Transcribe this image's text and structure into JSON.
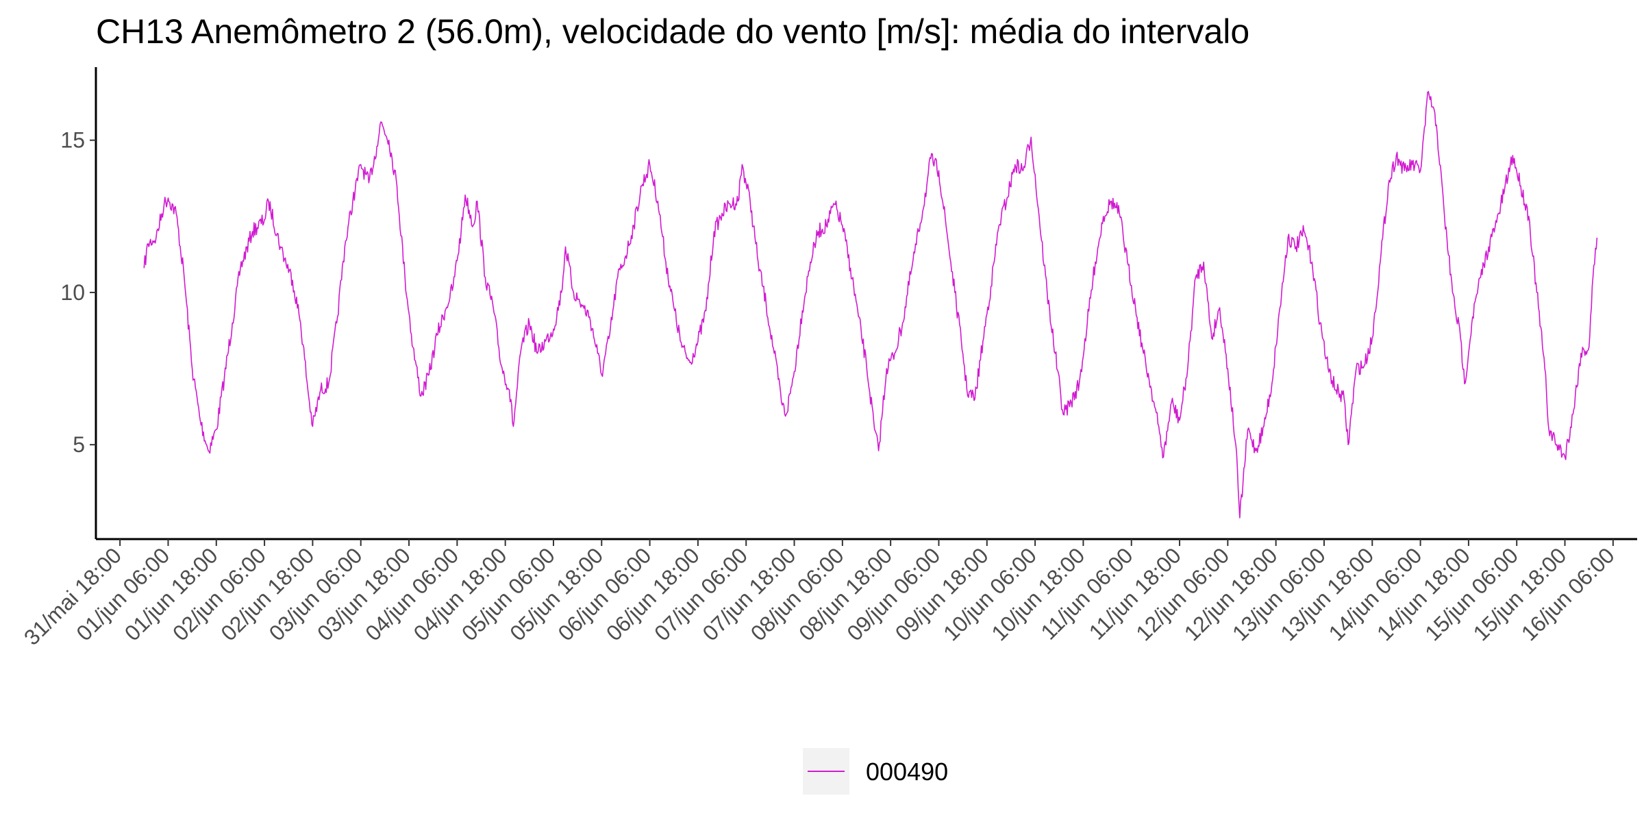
{
  "title": "CH13 Anemômetro 2 (56.0m), velocidade do vento [m/s]: média do intervalo",
  "colors": {
    "series": "#d11ad1",
    "axis": "#000000",
    "tick_text": "#4d4d4d",
    "legend_key_bg": "#f2f2f2"
  },
  "chart_data": {
    "type": "line",
    "title": "CH13 Anemômetro 2 (56.0m), velocidade do vento [m/s]: média do intervalo",
    "xlabel": "",
    "ylabel": "",
    "grid": false,
    "legend_position": "bottom",
    "x_unit": "datetime",
    "xlim": [
      "2024-05-31T12:00",
      "2024-06-16T12:00"
    ],
    "ylim": [
      1.9,
      17.4
    ],
    "yticks": [
      5,
      10,
      15
    ],
    "xtick_labels": [
      "31/mai 18:00",
      "01/jun 06:00",
      "01/jun 18:00",
      "02/jun 06:00",
      "02/jun 18:00",
      "03/jun 06:00",
      "03/jun 18:00",
      "04/jun 06:00",
      "04/jun 18:00",
      "05/jun 06:00",
      "05/jun 18:00",
      "06/jun 06:00",
      "06/jun 18:00",
      "07/jun 06:00",
      "07/jun 18:00",
      "08/jun 06:00",
      "08/jun 18:00",
      "09/jun 06:00",
      "09/jun 18:00",
      "10/jun 06:00",
      "10/jun 18:00",
      "11/jun 06:00",
      "11/jun 18:00",
      "12/jun 06:00",
      "12/jun 18:00",
      "13/jun 06:00",
      "13/jun 18:00",
      "14/jun 06:00",
      "14/jun 18:00",
      "15/jun 06:00",
      "15/jun 18:00",
      "16/jun 06:00"
    ],
    "xticks": [
      "2024-05-31T18:00",
      "2024-06-01T06:00",
      "2024-06-01T18:00",
      "2024-06-02T06:00",
      "2024-06-02T18:00",
      "2024-06-03T06:00",
      "2024-06-03T18:00",
      "2024-06-04T06:00",
      "2024-06-04T18:00",
      "2024-06-05T06:00",
      "2024-06-05T18:00",
      "2024-06-06T06:00",
      "2024-06-06T18:00",
      "2024-06-07T06:00",
      "2024-06-07T18:00",
      "2024-06-08T06:00",
      "2024-06-08T18:00",
      "2024-06-09T06:00",
      "2024-06-09T18:00",
      "2024-06-10T06:00",
      "2024-06-10T18:00",
      "2024-06-11T06:00",
      "2024-06-11T18:00",
      "2024-06-12T06:00",
      "2024-06-12T18:00",
      "2024-06-13T06:00",
      "2024-06-13T18:00",
      "2024-06-14T06:00",
      "2024-06-14T18:00",
      "2024-06-15T06:00",
      "2024-06-15T18:00",
      "2024-06-16T06:00"
    ],
    "series": [
      {
        "name": "000490",
        "color": "#d11ad1",
        "points": [
          [
            "2024-06-01T00:00",
            10.8
          ],
          [
            "2024-06-01T01:00",
            11.6
          ],
          [
            "2024-06-01T03:00",
            11.8
          ],
          [
            "2024-06-01T05:00",
            12.9
          ],
          [
            "2024-06-01T06:00",
            13.1
          ],
          [
            "2024-06-01T08:00",
            12.6
          ],
          [
            "2024-06-01T10:00",
            10.5
          ],
          [
            "2024-06-01T12:00",
            7.5
          ],
          [
            "2024-06-01T14:00",
            5.8
          ],
          [
            "2024-06-01T16:00",
            4.8
          ],
          [
            "2024-06-01T18:00",
            5.5
          ],
          [
            "2024-06-01T20:00",
            7.2
          ],
          [
            "2024-06-01T22:00",
            9.0
          ],
          [
            "2024-06-02T00:00",
            10.8
          ],
          [
            "2024-06-02T03:00",
            12.0
          ],
          [
            "2024-06-02T06:00",
            12.4
          ],
          [
            "2024-06-02T07:00",
            13.0
          ],
          [
            "2024-06-02T10:00",
            11.5
          ],
          [
            "2024-06-02T13:00",
            10.4
          ],
          [
            "2024-06-02T15:00",
            9.0
          ],
          [
            "2024-06-02T17:00",
            6.6
          ],
          [
            "2024-06-02T18:00",
            5.6
          ],
          [
            "2024-06-02T20:00",
            6.8
          ],
          [
            "2024-06-02T22:00",
            7.0
          ],
          [
            "2024-06-03T00:00",
            9.0
          ],
          [
            "2024-06-03T02:00",
            11.5
          ],
          [
            "2024-06-03T04:00",
            13.0
          ],
          [
            "2024-06-03T06:00",
            14.2
          ],
          [
            "2024-06-03T08:00",
            13.6
          ],
          [
            "2024-06-03T10:00",
            14.8
          ],
          [
            "2024-06-03T11:00",
            15.6
          ],
          [
            "2024-06-03T13:00",
            15.0
          ],
          [
            "2024-06-03T15:00",
            13.5
          ],
          [
            "2024-06-03T17:00",
            10.5
          ],
          [
            "2024-06-03T19:00",
            8.2
          ],
          [
            "2024-06-03T21:00",
            6.6
          ],
          [
            "2024-06-03T23:00",
            7.3
          ],
          [
            "2024-06-04T01:00",
            8.6
          ],
          [
            "2024-06-04T03:00",
            9.4
          ],
          [
            "2024-06-04T05:00",
            10.2
          ],
          [
            "2024-06-04T07:00",
            12.0
          ],
          [
            "2024-06-04T08:00",
            13.2
          ],
          [
            "2024-06-04T10:00",
            12.2
          ],
          [
            "2024-06-04T11:00",
            13.0
          ],
          [
            "2024-06-04T13:00",
            10.5
          ],
          [
            "2024-06-04T15:00",
            9.5
          ],
          [
            "2024-06-04T17:00",
            7.6
          ],
          [
            "2024-06-04T19:00",
            6.8
          ],
          [
            "2024-06-04T20:00",
            5.6
          ],
          [
            "2024-06-04T22:00",
            8.2
          ],
          [
            "2024-06-05T00:00",
            9.0
          ],
          [
            "2024-06-05T02:00",
            8.0
          ],
          [
            "2024-06-05T04:00",
            8.4
          ],
          [
            "2024-06-05T06:00",
            8.8
          ],
          [
            "2024-06-05T08:00",
            10.0
          ],
          [
            "2024-06-05T09:00",
            11.5
          ],
          [
            "2024-06-05T11:00",
            10.0
          ],
          [
            "2024-06-05T13:00",
            9.6
          ],
          [
            "2024-06-05T15:00",
            9.2
          ],
          [
            "2024-06-05T17:00",
            8.0
          ],
          [
            "2024-06-05T18:00",
            7.3
          ],
          [
            "2024-06-05T20:00",
            8.6
          ],
          [
            "2024-06-05T22:00",
            10.5
          ],
          [
            "2024-06-06T00:00",
            11.2
          ],
          [
            "2024-06-06T02:00",
            12.2
          ],
          [
            "2024-06-06T04:00",
            13.5
          ],
          [
            "2024-06-06T06:00",
            14.2
          ],
          [
            "2024-06-06T08:00",
            13.0
          ],
          [
            "2024-06-06T10:00",
            11.0
          ],
          [
            "2024-06-06T12:00",
            9.5
          ],
          [
            "2024-06-06T14:00",
            8.2
          ],
          [
            "2024-06-06T16:00",
            7.7
          ],
          [
            "2024-06-06T18:00",
            8.4
          ],
          [
            "2024-06-06T20:00",
            9.4
          ],
          [
            "2024-06-06T22:00",
            12.0
          ],
          [
            "2024-06-07T00:00",
            12.6
          ],
          [
            "2024-06-07T02:00",
            12.9
          ],
          [
            "2024-06-07T04:00",
            13.0
          ],
          [
            "2024-06-07T05:00",
            14.2
          ],
          [
            "2024-06-07T07:00",
            13.0
          ],
          [
            "2024-06-07T09:00",
            11.0
          ],
          [
            "2024-06-07T11:00",
            9.6
          ],
          [
            "2024-06-07T13:00",
            8.0
          ],
          [
            "2024-06-07T15:00",
            6.3
          ],
          [
            "2024-06-07T16:00",
            6.0
          ],
          [
            "2024-06-07T18:00",
            7.4
          ],
          [
            "2024-06-07T20:00",
            9.4
          ],
          [
            "2024-06-07T22:00",
            11.0
          ],
          [
            "2024-06-08T00:00",
            12.0
          ],
          [
            "2024-06-08T02:00",
            12.2
          ],
          [
            "2024-06-08T04:00",
            12.9
          ],
          [
            "2024-06-08T06:00",
            12.2
          ],
          [
            "2024-06-08T08:00",
            10.8
          ],
          [
            "2024-06-08T10:00",
            9.2
          ],
          [
            "2024-06-08T12:00",
            7.6
          ],
          [
            "2024-06-08T14:00",
            5.5
          ],
          [
            "2024-06-08T15:00",
            4.8
          ],
          [
            "2024-06-08T17:00",
            7.5
          ],
          [
            "2024-06-08T19:00",
            8.0
          ],
          [
            "2024-06-08T21:00",
            9.0
          ],
          [
            "2024-06-08T23:00",
            10.6
          ],
          [
            "2024-06-09T01:00",
            12.0
          ],
          [
            "2024-06-09T03:00",
            13.5
          ],
          [
            "2024-06-09T04:00",
            14.4
          ],
          [
            "2024-06-09T06:00",
            14.0
          ],
          [
            "2024-06-09T08:00",
            12.0
          ],
          [
            "2024-06-09T10:00",
            10.0
          ],
          [
            "2024-06-09T12:00",
            8.0
          ],
          [
            "2024-06-09T13:00",
            6.8
          ],
          [
            "2024-06-09T15:00",
            6.5
          ],
          [
            "2024-06-09T17:00",
            8.4
          ],
          [
            "2024-06-09T19:00",
            10.2
          ],
          [
            "2024-06-09T21:00",
            12.2
          ],
          [
            "2024-06-09T23:00",
            13.1
          ],
          [
            "2024-06-10T01:00",
            14.2
          ],
          [
            "2024-06-10T03:00",
            14.0
          ],
          [
            "2024-06-10T05:00",
            15.1
          ],
          [
            "2024-06-10T07:00",
            12.5
          ],
          [
            "2024-06-10T09:00",
            10.0
          ],
          [
            "2024-06-10T11:00",
            8.0
          ],
          [
            "2024-06-10T13:00",
            6.0
          ],
          [
            "2024-06-10T15:00",
            6.4
          ],
          [
            "2024-06-10T17:00",
            7.0
          ],
          [
            "2024-06-10T19:00",
            9.0
          ],
          [
            "2024-06-10T21:00",
            11.0
          ],
          [
            "2024-06-10T23:00",
            12.5
          ],
          [
            "2024-06-11T01:00",
            13.0
          ],
          [
            "2024-06-11T03:00",
            12.6
          ],
          [
            "2024-06-11T05:00",
            11.0
          ],
          [
            "2024-06-11T07:00",
            9.5
          ],
          [
            "2024-06-11T09:00",
            8.0
          ],
          [
            "2024-06-11T11:00",
            6.8
          ],
          [
            "2024-06-11T13:00",
            5.4
          ],
          [
            "2024-06-11T14:00",
            4.6
          ],
          [
            "2024-06-11T16:00",
            6.4
          ],
          [
            "2024-06-11T18:00",
            5.8
          ],
          [
            "2024-06-11T20:00",
            7.5
          ],
          [
            "2024-06-11T22:00",
            10.5
          ],
          [
            "2024-06-12T00:00",
            11.0
          ],
          [
            "2024-06-12T02:00",
            8.5
          ],
          [
            "2024-06-12T04:00",
            9.5
          ],
          [
            "2024-06-12T06:00",
            7.5
          ],
          [
            "2024-06-12T08:00",
            5.0
          ],
          [
            "2024-06-12T09:00",
            2.6
          ],
          [
            "2024-06-12T11:00",
            5.5
          ],
          [
            "2024-06-12T13:00",
            4.8
          ],
          [
            "2024-06-12T15:00",
            5.6
          ],
          [
            "2024-06-12T17:00",
            7.0
          ],
          [
            "2024-06-12T19:00",
            9.5
          ],
          [
            "2024-06-12T21:00",
            11.8
          ],
          [
            "2024-06-12T23:00",
            11.5
          ],
          [
            "2024-06-13T01:00",
            12.0
          ],
          [
            "2024-06-13T03:00",
            11.0
          ],
          [
            "2024-06-13T05:00",
            9.0
          ],
          [
            "2024-06-13T07:00",
            7.5
          ],
          [
            "2024-06-13T09:00",
            6.8
          ],
          [
            "2024-06-13T11:00",
            6.5
          ],
          [
            "2024-06-13T12:00",
            5.0
          ],
          [
            "2024-06-13T14:00",
            7.5
          ],
          [
            "2024-06-13T16:00",
            7.6
          ],
          [
            "2024-06-13T18:00",
            8.5
          ],
          [
            "2024-06-13T20:00",
            11.0
          ],
          [
            "2024-06-13T22:00",
            13.5
          ],
          [
            "2024-06-14T00:00",
            14.5
          ],
          [
            "2024-06-14T02:00",
            14.0
          ],
          [
            "2024-06-14T04:00",
            14.2
          ],
          [
            "2024-06-14T06:00",
            14.0
          ],
          [
            "2024-06-14T08:00",
            16.6
          ],
          [
            "2024-06-14T10:00",
            15.5
          ],
          [
            "2024-06-14T12:00",
            12.5
          ],
          [
            "2024-06-14T14:00",
            10.0
          ],
          [
            "2024-06-14T16:00",
            8.5
          ],
          [
            "2024-06-14T17:00",
            7.0
          ],
          [
            "2024-06-14T19:00",
            9.2
          ],
          [
            "2024-06-14T21:00",
            10.5
          ],
          [
            "2024-06-14T23:00",
            11.5
          ],
          [
            "2024-06-15T01:00",
            12.3
          ],
          [
            "2024-06-15T03:00",
            13.4
          ],
          [
            "2024-06-15T05:00",
            14.5
          ],
          [
            "2024-06-15T07:00",
            13.5
          ],
          [
            "2024-06-15T09:00",
            12.5
          ],
          [
            "2024-06-15T11:00",
            10.0
          ],
          [
            "2024-06-15T13:00",
            7.5
          ],
          [
            "2024-06-15T14:00",
            5.5
          ],
          [
            "2024-06-15T16:00",
            5.0
          ],
          [
            "2024-06-15T18:00",
            4.6
          ],
          [
            "2024-06-15T20:00",
            6.0
          ],
          [
            "2024-06-15T22:00",
            8.0
          ],
          [
            "2024-06-16T00:00",
            8.2
          ],
          [
            "2024-06-16T01:00",
            10.5
          ],
          [
            "2024-06-16T02:00",
            11.8
          ]
        ]
      }
    ]
  }
}
